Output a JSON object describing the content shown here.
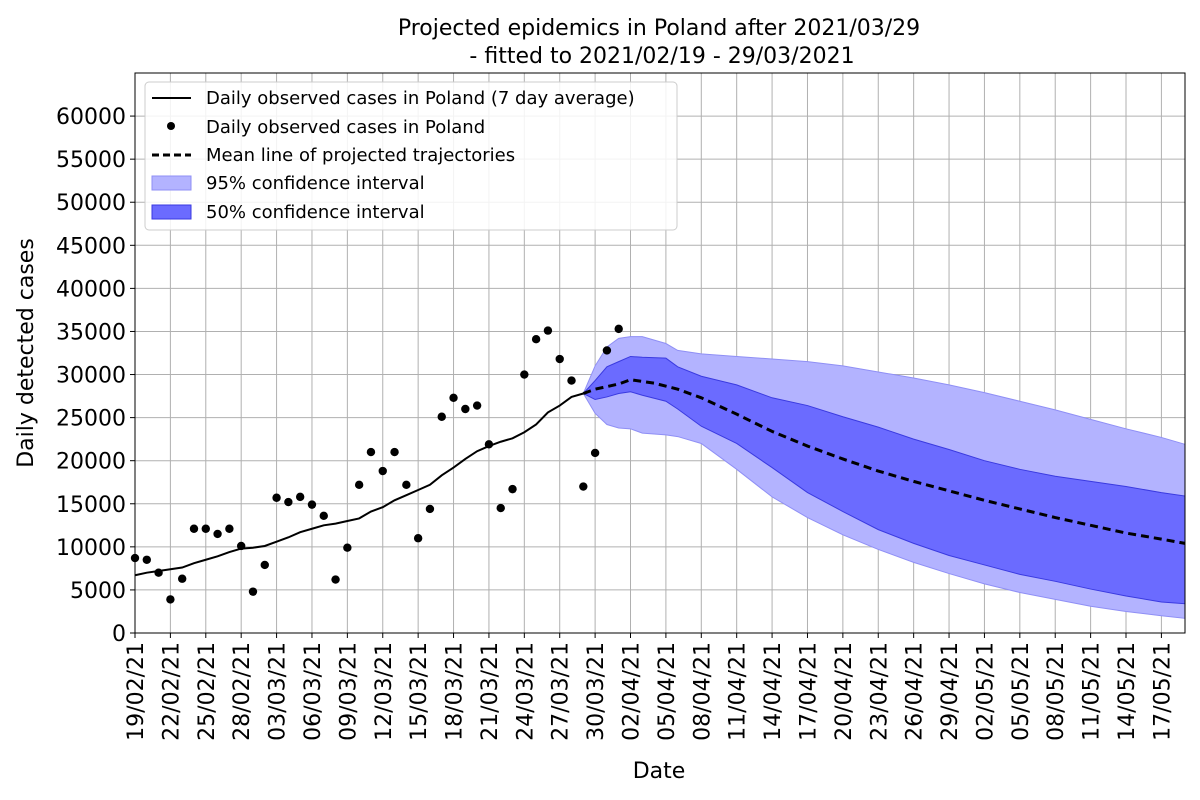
{
  "chart_data": {
    "type": "line",
    "title_line1": "Projected epidemics in Poland after 2021/03/29",
    "title_line2": "- fitted to 2021/02/19 - 29/03/2021",
    "xlabel": "Date",
    "ylabel": "Daily detected cases",
    "ylim": [
      0,
      65000
    ],
    "xlim": [
      "2021-02-19",
      "2021-05-19"
    ],
    "grid": true,
    "legend_placement": "top-left",
    "yticks": [
      0,
      5000,
      10000,
      15000,
      20000,
      25000,
      30000,
      35000,
      40000,
      45000,
      50000,
      55000,
      60000
    ],
    "xticks": [
      {
        "date": "2021-02-19",
        "label": "19/02/21"
      },
      {
        "date": "2021-02-22",
        "label": "22/02/21"
      },
      {
        "date": "2021-02-25",
        "label": "25/02/21"
      },
      {
        "date": "2021-02-28",
        "label": "28/02/21"
      },
      {
        "date": "2021-03-03",
        "label": "03/03/21"
      },
      {
        "date": "2021-03-06",
        "label": "06/03/21"
      },
      {
        "date": "2021-03-09",
        "label": "09/03/21"
      },
      {
        "date": "2021-03-12",
        "label": "12/03/21"
      },
      {
        "date": "2021-03-15",
        "label": "15/03/21"
      },
      {
        "date": "2021-03-18",
        "label": "18/03/21"
      },
      {
        "date": "2021-03-21",
        "label": "21/03/21"
      },
      {
        "date": "2021-03-24",
        "label": "24/03/21"
      },
      {
        "date": "2021-03-27",
        "label": "27/03/21"
      },
      {
        "date": "2021-03-30",
        "label": "30/03/21"
      },
      {
        "date": "2021-04-02",
        "label": "02/04/21"
      },
      {
        "date": "2021-04-05",
        "label": "05/04/21"
      },
      {
        "date": "2021-04-08",
        "label": "08/04/21"
      },
      {
        "date": "2021-04-11",
        "label": "11/04/21"
      },
      {
        "date": "2021-04-14",
        "label": "14/04/21"
      },
      {
        "date": "2021-04-17",
        "label": "17/04/21"
      },
      {
        "date": "2021-04-20",
        "label": "20/04/21"
      },
      {
        "date": "2021-04-23",
        "label": "23/04/21"
      },
      {
        "date": "2021-04-26",
        "label": "26/04/21"
      },
      {
        "date": "2021-04-29",
        "label": "29/04/21"
      },
      {
        "date": "2021-05-02",
        "label": "02/05/21"
      },
      {
        "date": "2021-05-05",
        "label": "05/05/21"
      },
      {
        "date": "2021-05-08",
        "label": "08/05/21"
      },
      {
        "date": "2021-05-11",
        "label": "11/05/21"
      },
      {
        "date": "2021-05-14",
        "label": "14/05/21"
      },
      {
        "date": "2021-05-17",
        "label": "17/05/21"
      }
    ],
    "legend": [
      {
        "label": "Daily observed cases in Poland (7 day average)",
        "kind": "line"
      },
      {
        "label": "Daily observed cases in Poland",
        "kind": "dot"
      },
      {
        "label": "Mean line of projected trajectories",
        "kind": "dashed"
      },
      {
        "label": "95% confidence interval",
        "kind": "band95"
      },
      {
        "label": "50% confidence interval",
        "kind": "band50"
      }
    ],
    "colors": {
      "band95": "#b3b3ff",
      "band95_edge": "#8f8ff5",
      "band50": "#6b6bff",
      "band50_edge": "#3a3ae0",
      "line": "#000000",
      "grid": "#b0b0b0"
    },
    "series": [
      {
        "name": "Daily observed cases in Poland",
        "kind": "scatter",
        "x": [
          "2021-02-19",
          "2021-02-20",
          "2021-02-21",
          "2021-02-22",
          "2021-02-23",
          "2021-02-24",
          "2021-02-25",
          "2021-02-26",
          "2021-02-27",
          "2021-02-28",
          "2021-03-01",
          "2021-03-02",
          "2021-03-03",
          "2021-03-04",
          "2021-03-05",
          "2021-03-06",
          "2021-03-07",
          "2021-03-08",
          "2021-03-09",
          "2021-03-10",
          "2021-03-11",
          "2021-03-12",
          "2021-03-13",
          "2021-03-14",
          "2021-03-15",
          "2021-03-16",
          "2021-03-17",
          "2021-03-18",
          "2021-03-19",
          "2021-03-20",
          "2021-03-21",
          "2021-03-22",
          "2021-03-23",
          "2021-03-24",
          "2021-03-25",
          "2021-03-26",
          "2021-03-27",
          "2021-03-28",
          "2021-03-29",
          "2021-03-30",
          "2021-03-31",
          "2021-04-01"
        ],
        "y": [
          8700,
          8500,
          7000,
          3900,
          6300,
          12100,
          12100,
          11500,
          12100,
          10100,
          4800,
          7900,
          15700,
          15200,
          15800,
          14900,
          13600,
          6200,
          9900,
          17200,
          21000,
          18800,
          21000,
          17200,
          11000,
          14400,
          25100,
          27300,
          26000,
          26400,
          21900,
          14500,
          16700,
          30000,
          34100,
          35100,
          31800,
          29300,
          17000,
          20900,
          32800,
          35300
        ]
      },
      {
        "name": "Daily observed cases in Poland (7 day average)",
        "kind": "line",
        "x": [
          "2021-02-19",
          "2021-02-20",
          "2021-02-21",
          "2021-02-22",
          "2021-02-23",
          "2021-02-24",
          "2021-02-25",
          "2021-02-26",
          "2021-02-27",
          "2021-02-28",
          "2021-03-01",
          "2021-03-02",
          "2021-03-03",
          "2021-03-04",
          "2021-03-05",
          "2021-03-06",
          "2021-03-07",
          "2021-03-08",
          "2021-03-09",
          "2021-03-10",
          "2021-03-11",
          "2021-03-12",
          "2021-03-13",
          "2021-03-14",
          "2021-03-15",
          "2021-03-16",
          "2021-03-17",
          "2021-03-18",
          "2021-03-19",
          "2021-03-20",
          "2021-03-21",
          "2021-03-22",
          "2021-03-23",
          "2021-03-24",
          "2021-03-25",
          "2021-03-26",
          "2021-03-27",
          "2021-03-28",
          "2021-03-29"
        ],
        "y": [
          6700,
          7000,
          7200,
          7400,
          7600,
          8100,
          8500,
          8900,
          9400,
          9800,
          9900,
          10100,
          10600,
          11100,
          11700,
          12100,
          12500,
          12700,
          13000,
          13300,
          14100,
          14600,
          15400,
          16000,
          16600,
          17200,
          18300,
          19200,
          20200,
          21100,
          21700,
          22200,
          22600,
          23300,
          24200,
          25600,
          26400,
          27400,
          27800
        ]
      },
      {
        "name": "Mean line of projected trajectories",
        "kind": "dashed",
        "x": [
          "2021-03-29",
          "2021-03-30",
          "2021-04-01",
          "2021-04-02",
          "2021-04-04",
          "2021-04-06",
          "2021-04-08",
          "2021-04-11",
          "2021-04-14",
          "2021-04-17",
          "2021-04-20",
          "2021-04-23",
          "2021-04-26",
          "2021-04-29",
          "2021-05-02",
          "2021-05-05",
          "2021-05-08",
          "2021-05-11",
          "2021-05-14",
          "2021-05-17",
          "2021-05-19"
        ],
        "y": [
          27800,
          28300,
          28900,
          29400,
          29000,
          28300,
          27300,
          25400,
          23400,
          21700,
          20200,
          18800,
          17600,
          16500,
          15400,
          14400,
          13400,
          12500,
          11600,
          10900,
          10400
        ]
      },
      {
        "name": "95% confidence interval",
        "kind": "band",
        "x": [
          "2021-03-29",
          "2021-03-30",
          "2021-03-31",
          "2021-04-01",
          "2021-04-02",
          "2021-04-03",
          "2021-04-05",
          "2021-04-06",
          "2021-04-08",
          "2021-04-11",
          "2021-04-14",
          "2021-04-17",
          "2021-04-20",
          "2021-04-23",
          "2021-04-26",
          "2021-04-29",
          "2021-05-02",
          "2021-05-05",
          "2021-05-08",
          "2021-05-11",
          "2021-05-14",
          "2021-05-17",
          "2021-05-19"
        ],
        "lower": [
          27800,
          25500,
          24200,
          23800,
          23700,
          23200,
          23000,
          22800,
          22000,
          19000,
          15800,
          13400,
          11400,
          9700,
          8200,
          6900,
          5700,
          4700,
          3900,
          3100,
          2500,
          2000,
          1700
        ],
        "upper": [
          27800,
          31000,
          33200,
          34200,
          34400,
          34400,
          33600,
          32800,
          32400,
          32100,
          31800,
          31500,
          31000,
          30300,
          29600,
          28800,
          27900,
          26900,
          25900,
          24800,
          23700,
          22700,
          21900
        ]
      },
      {
        "name": "50% confidence interval",
        "kind": "band",
        "x": [
          "2021-03-29",
          "2021-03-30",
          "2021-03-31",
          "2021-04-01",
          "2021-04-02",
          "2021-04-03",
          "2021-04-05",
          "2021-04-06",
          "2021-04-08",
          "2021-04-11",
          "2021-04-14",
          "2021-04-17",
          "2021-04-20",
          "2021-04-23",
          "2021-04-26",
          "2021-04-29",
          "2021-05-02",
          "2021-05-05",
          "2021-05-08",
          "2021-05-11",
          "2021-05-14",
          "2021-05-17",
          "2021-05-19"
        ],
        "lower": [
          27800,
          27100,
          27400,
          27800,
          28000,
          27600,
          26900,
          26000,
          24000,
          22000,
          19200,
          16300,
          14100,
          12000,
          10400,
          9000,
          7900,
          6800,
          6000,
          5100,
          4300,
          3600,
          3400
        ],
        "upper": [
          27800,
          29300,
          30900,
          31500,
          32100,
          32000,
          31900,
          30900,
          29800,
          28800,
          27300,
          26400,
          25100,
          23900,
          22500,
          21300,
          20000,
          19000,
          18200,
          17600,
          17000,
          16300,
          15900
        ]
      }
    ]
  }
}
